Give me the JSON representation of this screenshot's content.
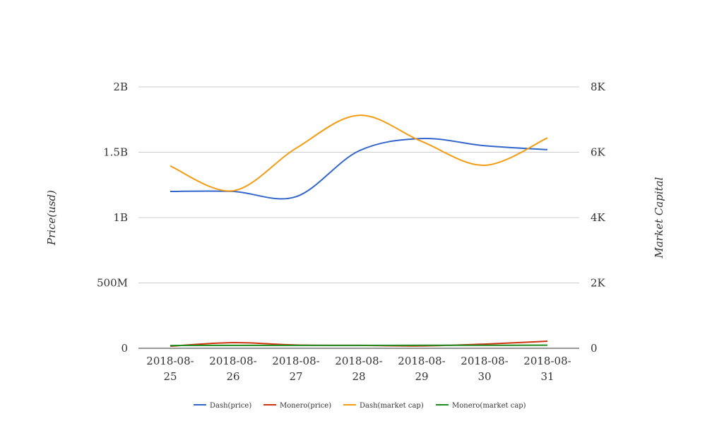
{
  "chart_data": {
    "type": "line",
    "title": "",
    "categories": [
      [
        "2018-08-",
        "25"
      ],
      [
        "2018-08-",
        "26"
      ],
      [
        "2018-08-",
        "27"
      ],
      [
        "2018-08-",
        "28"
      ],
      [
        "2018-08-",
        "29"
      ],
      [
        "2018-08-",
        "30"
      ],
      [
        "2018-08-",
        "31"
      ]
    ],
    "ylabel": "Price(usd)",
    "y2label": "Market Capital",
    "ylim": [
      0,
      2000000000
    ],
    "y2lim": [
      0,
      8000
    ],
    "yticks": [
      "0",
      "500M",
      "1B",
      "1.5B",
      "2B"
    ],
    "y2ticks": [
      "0",
      "2K",
      "4K",
      "6K",
      "8K"
    ],
    "grid": true,
    "legend_position": "bottom",
    "series": [
      {
        "name": "Dash(price)",
        "color": "#3366cc",
        "axis": "left",
        "values": [
          1200000000,
          1200000000,
          1160000000,
          1510000000,
          1605000000,
          1550000000,
          1520000000
        ]
      },
      {
        "name": "Monero(price)",
        "color": "#cc3311",
        "axis": "left",
        "values": [
          16000000,
          43000000,
          25000000,
          22000000,
          18000000,
          32000000,
          54000000
        ]
      },
      {
        "name": "Dash(market cap)",
        "color": "#f39c12",
        "axis": "right",
        "values": [
          5580,
          4820,
          6120,
          7130,
          6330,
          5600,
          6440
        ]
      },
      {
        "name": "Monero(market cap)",
        "color": "#1e8c1e",
        "axis": "right",
        "values": [
          85,
          90,
          90,
          88,
          92,
          92,
          95
        ]
      }
    ]
  }
}
